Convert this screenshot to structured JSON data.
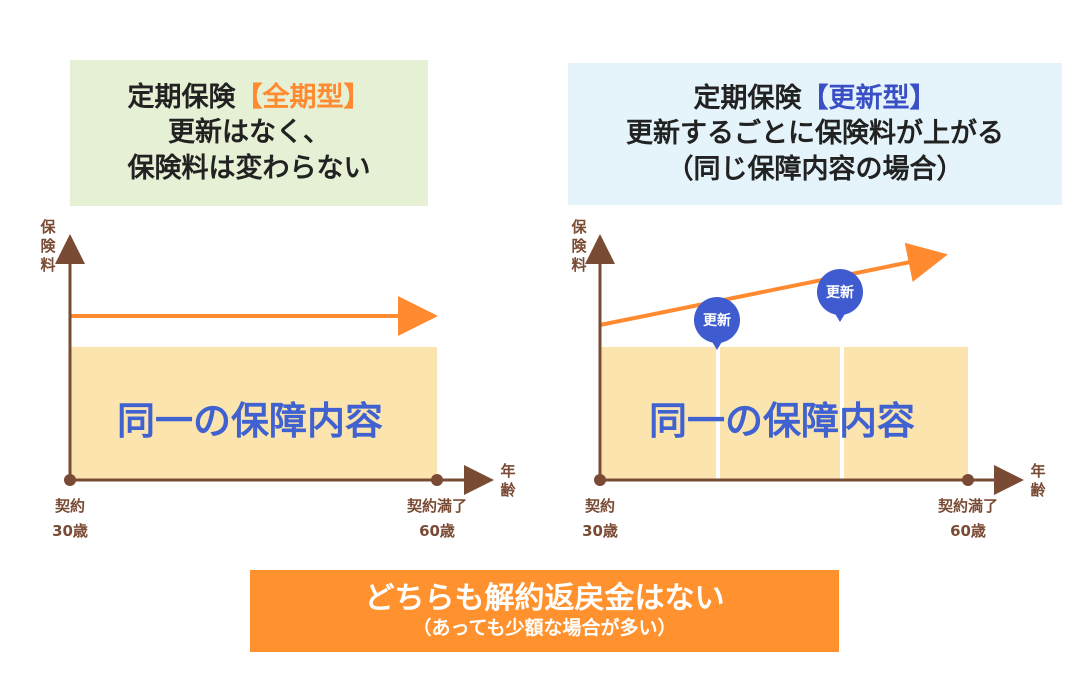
{
  "left_panel": {
    "title_prefix": "定期保険",
    "title_type": "【全期型】",
    "title_line2": "更新はなく、",
    "title_line3": "保険料は変わらない",
    "y_axis_label": [
      "保",
      "険",
      "料"
    ],
    "x_axis_label": [
      "年",
      "齢"
    ],
    "content_label": "同一の保障内容",
    "start_label": [
      "契約",
      "30歳"
    ],
    "end_label": [
      "契約満了",
      "60歳"
    ]
  },
  "right_panel": {
    "title_prefix": "定期保険",
    "title_type": "【更新型】",
    "title_line2": "更新するごとに保険料が上がる",
    "title_line3": "（同じ保障内容の場合）",
    "y_axis_label": [
      "保",
      "険",
      "料"
    ],
    "x_axis_label": [
      "年",
      "齢"
    ],
    "content_label": "同一の保障内容",
    "renewal_labels": [
      "更新",
      "更新"
    ],
    "start_label": [
      "契約",
      "30歳"
    ],
    "end_label": [
      "契約満了",
      "60歳"
    ]
  },
  "bottom": {
    "main": "どちらも解約返戻金はない",
    "sub": "（あっても少額な場合が多い）"
  },
  "colors": {
    "accent_orange": "#ff8a30",
    "accent_blue": "#3a4fc6",
    "axis_brown": "#7a4b34",
    "coverage_fill": "#fbe4ad",
    "arrow_orange": "#ff8a30",
    "bubble_blue": "#3f5bd0",
    "bottom_banner": "#ff922e"
  }
}
